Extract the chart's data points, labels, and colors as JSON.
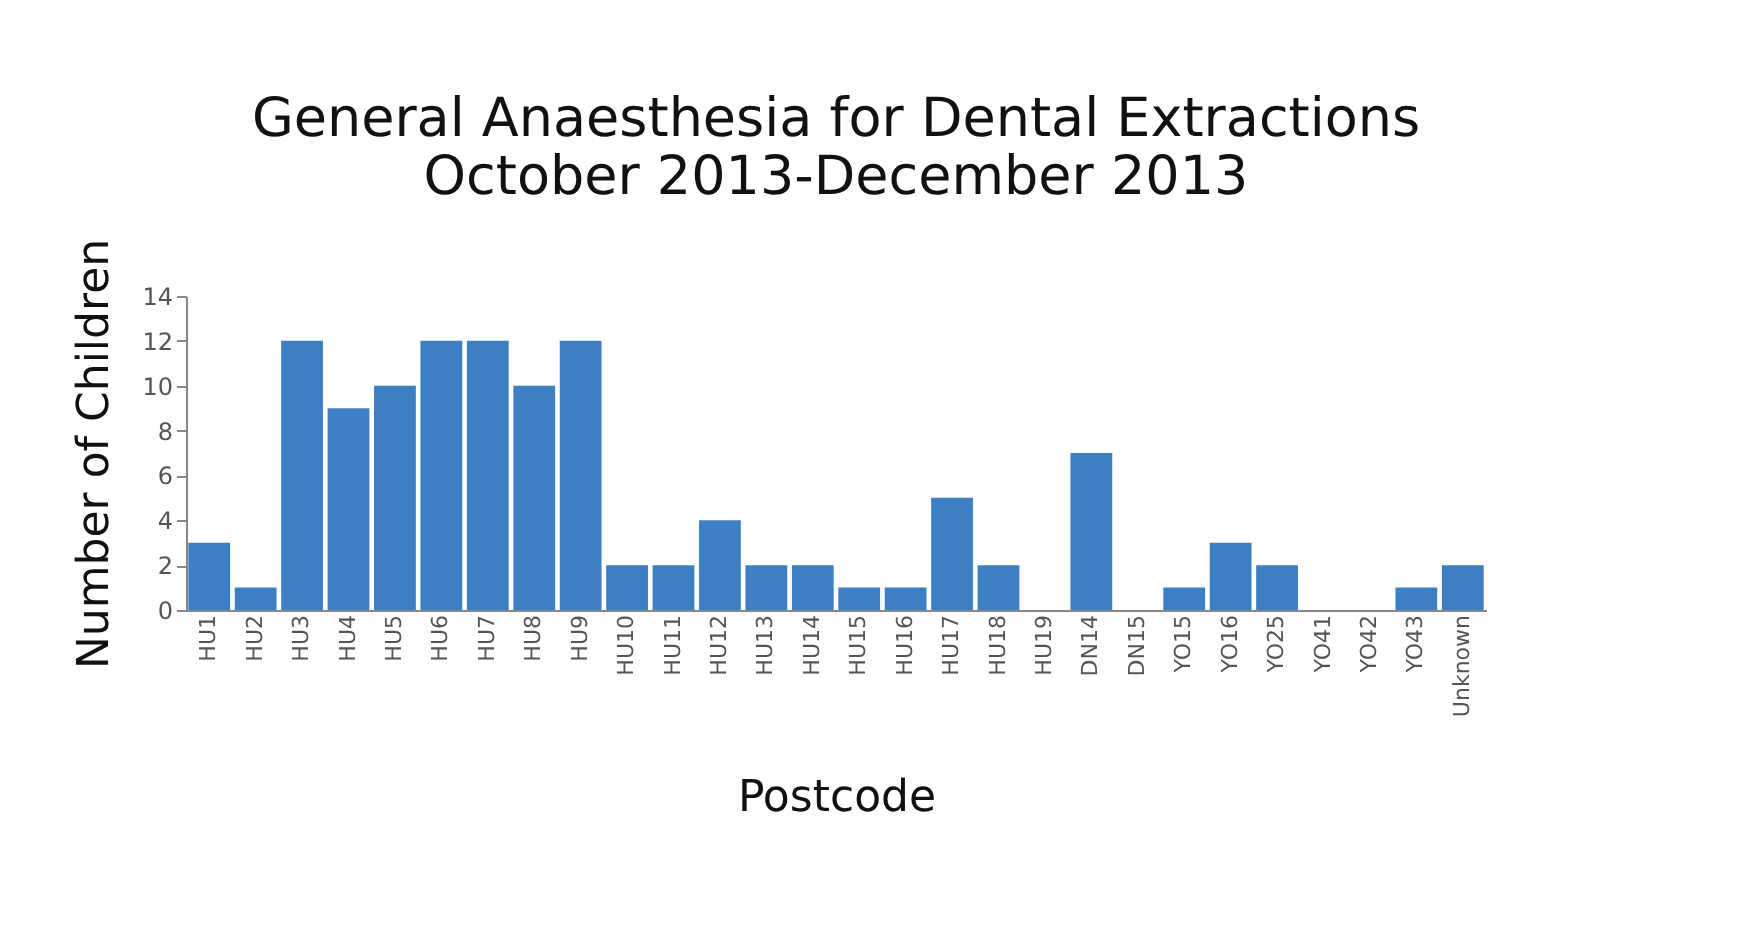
{
  "chart_data": {
    "type": "bar",
    "title": [
      "General Anaesthesia for Dental Extractions",
      "October 2013-December 2013"
    ],
    "xlabel": "Postcode",
    "ylabel": "Number of Children",
    "categories": [
      "HU1",
      "HU2",
      "HU3",
      "HU4",
      "HU5",
      "HU6",
      "HU7",
      "HU8",
      "HU9",
      "HU10",
      "HU11",
      "HU12",
      "HU13",
      "HU14",
      "HU15",
      "HU16",
      "HU17",
      "HU18",
      "HU19",
      "DN14",
      "DN15",
      "YO15",
      "YO16",
      "YO25",
      "YO41",
      "YO42",
      "YO43",
      "Unknown"
    ],
    "values": [
      3,
      1,
      12,
      9,
      10,
      12,
      12,
      10,
      12,
      2,
      2,
      4,
      2,
      2,
      1,
      1,
      5,
      2,
      0,
      7,
      0,
      1,
      3,
      2,
      0,
      0,
      1,
      2
    ],
    "color": "#3d7fc4",
    "ylim": [
      0,
      14
    ],
    "yticks": [
      0,
      2,
      4,
      6,
      8,
      10,
      12,
      14
    ],
    "grid": false
  }
}
